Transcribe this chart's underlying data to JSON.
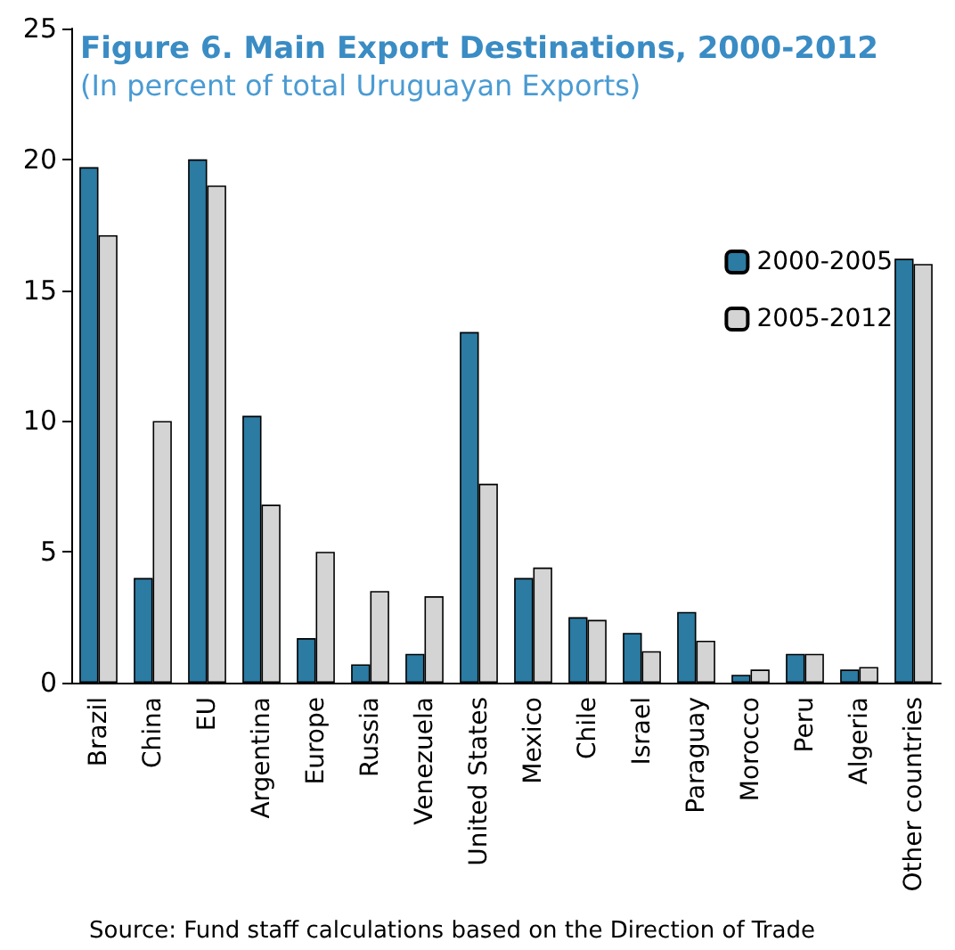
{
  "chart_data": {
    "type": "bar",
    "title": "Figure 6. Main Export Destinations, 2000-2012",
    "subtitle": "(In percent of total Uruguayan Exports)",
    "categories": [
      "Brazil",
      "China",
      "EU",
      "Argentina",
      "Europe",
      "Russia",
      "Venezuela",
      "United States",
      "Mexico",
      "Chile",
      "Israel",
      "Paraguay",
      "Morocco",
      "Peru",
      "Algeria",
      "Other countries"
    ],
    "series": [
      {
        "name": "2000-2005",
        "color": "#2b7ba3",
        "values": [
          19.7,
          4.0,
          20.0,
          10.2,
          1.7,
          0.7,
          1.1,
          13.4,
          4.0,
          2.5,
          1.9,
          2.7,
          0.3,
          1.1,
          0.5,
          16.2
        ]
      },
      {
        "name": "2005-2012",
        "color": "#d4d4d4",
        "values": [
          17.1,
          10.0,
          19.0,
          6.8,
          5.0,
          3.5,
          3.3,
          7.6,
          4.4,
          2.4,
          1.2,
          1.6,
          0.5,
          1.1,
          0.6,
          16.0
        ]
      }
    ],
    "ylim": [
      0,
      25
    ],
    "yticks": [
      0,
      5,
      10,
      15,
      20,
      25
    ],
    "grid": false,
    "legend": "right",
    "annotations": [
      "Source: Fund staff calculations based on the Direction of Trade"
    ]
  }
}
